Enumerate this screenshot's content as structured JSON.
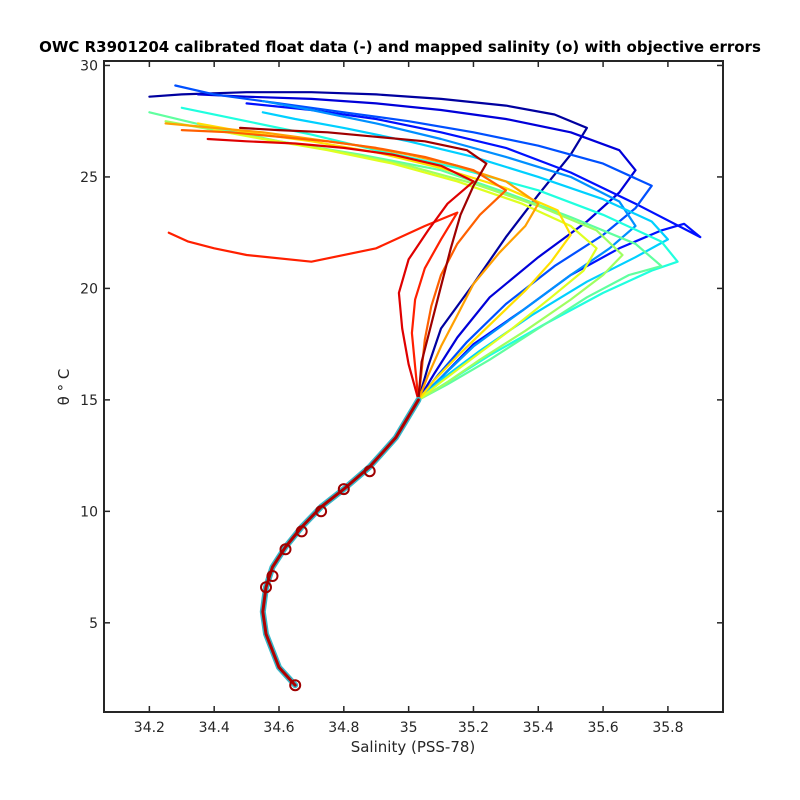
{
  "chart_data": {
    "type": "line",
    "title": "OWC R3901204 calibrated float data (-) and mapped salinity (o) with objective errors",
    "xlabel": "Salinity (PSS-78)",
    "ylabel": "θ ° C",
    "xlim": [
      34.06,
      35.97
    ],
    "ylim": [
      1.0,
      30.2
    ],
    "xticks": [
      "34.2",
      "34.4",
      "34.6",
      "34.8",
      "35",
      "35.2",
      "35.4",
      "35.6",
      "35.8"
    ],
    "xtick_values": [
      34.2,
      34.4,
      34.6,
      34.8,
      35.0,
      35.2,
      35.4,
      35.6,
      35.8
    ],
    "yticks": [
      "5",
      "10",
      "15",
      "20",
      "25",
      "30"
    ],
    "ytick_values": [
      5,
      10,
      15,
      20,
      25,
      30
    ],
    "colormap": "jet",
    "grid": false,
    "legend": "none",
    "deep_ts_curve": {
      "salinity": [
        34.65,
        34.6,
        34.56,
        34.55,
        34.56,
        34.58,
        34.62,
        34.67,
        34.73,
        34.8,
        34.88,
        34.96,
        35.03
      ],
      "theta": [
        2.2,
        3.0,
        4.5,
        5.5,
        6.6,
        7.5,
        8.4,
        9.3,
        10.2,
        11.0,
        12.0,
        13.3,
        15.0
      ]
    },
    "mapped_salinity_points": {
      "salinity": [
        34.65,
        34.56,
        34.58,
        34.62,
        34.67,
        34.73,
        34.8,
        34.88
      ],
      "theta": [
        2.2,
        6.6,
        7.1,
        8.3,
        9.1,
        10.0,
        11.0,
        11.8
      ]
    },
    "upper_profile_spread": {
      "theta_at_mix_point": 15.0,
      "salinity_range_surface": [
        34.18,
        35.9
      ],
      "theta_range_surface": [
        15.0,
        29.1
      ]
    },
    "series": [
      {
        "color": "#00009f",
        "salinity": [
          35.03,
          35.06,
          35.1,
          35.2,
          35.3,
          35.4,
          35.5,
          35.55,
          35.45,
          35.3,
          35.1,
          34.9,
          34.7,
          34.5,
          34.3,
          34.2
        ],
        "theta": [
          15.0,
          16.5,
          18.2,
          20.2,
          22.3,
          24.2,
          26.0,
          27.2,
          27.8,
          28.2,
          28.5,
          28.7,
          28.8,
          28.8,
          28.7,
          28.6
        ]
      },
      {
        "color": "#0000d9",
        "salinity": [
          35.03,
          35.08,
          35.15,
          35.25,
          35.4,
          35.55,
          35.65,
          35.7,
          35.65,
          35.5,
          35.3,
          35.1,
          34.9,
          34.7,
          34.5,
          34.35
        ],
        "theta": [
          15.0,
          16.2,
          17.8,
          19.6,
          21.4,
          23.0,
          24.3,
          25.3,
          26.2,
          27.0,
          27.6,
          28.0,
          28.3,
          28.5,
          28.6,
          28.7
        ]
      },
      {
        "color": "#0010ff",
        "salinity": [
          35.03,
          35.1,
          35.2,
          35.35,
          35.5,
          35.65,
          35.78,
          35.85,
          35.9,
          35.7,
          35.5,
          35.3,
          35.1,
          34.9,
          34.7,
          34.5
        ],
        "theta": [
          15.0,
          16.0,
          17.5,
          19.0,
          20.6,
          21.8,
          22.6,
          22.9,
          22.3,
          23.8,
          25.2,
          26.3,
          27.0,
          27.6,
          28.0,
          28.3
        ]
      },
      {
        "color": "#0050ff",
        "salinity": [
          35.03,
          35.09,
          35.18,
          35.3,
          35.45,
          35.6,
          35.7,
          35.75,
          35.6,
          35.4,
          35.2,
          35.0,
          34.8,
          34.6,
          34.4,
          34.28
        ],
        "theta": [
          15.0,
          16.1,
          17.6,
          19.3,
          21.0,
          22.4,
          23.6,
          24.6,
          25.6,
          26.4,
          27.0,
          27.5,
          27.9,
          28.3,
          28.7,
          29.1
        ]
      },
      {
        "color": "#0090ff",
        "salinity": [
          35.03,
          35.1,
          35.2,
          35.35,
          35.5,
          35.62,
          35.7,
          35.65,
          35.5,
          35.3,
          35.1,
          34.9,
          34.7,
          34.55
        ],
        "theta": [
          15.0,
          16.0,
          17.4,
          19.0,
          20.6,
          21.8,
          22.8,
          23.9,
          25.0,
          25.9,
          26.7,
          27.4,
          28.0,
          28.4
        ]
      },
      {
        "color": "#00d0ff",
        "salinity": [
          35.03,
          35.1,
          35.22,
          35.38,
          35.55,
          35.7,
          35.8,
          35.75,
          35.6,
          35.4,
          35.2,
          35.0,
          34.8,
          34.65,
          34.55
        ],
        "theta": [
          15.0,
          15.9,
          17.2,
          18.8,
          20.3,
          21.4,
          22.2,
          23.0,
          24.0,
          25.0,
          25.9,
          26.6,
          27.2,
          27.6,
          27.9
        ]
      },
      {
        "color": "#20ffdf",
        "salinity": [
          35.03,
          35.12,
          35.25,
          35.42,
          35.6,
          35.75,
          35.83,
          35.78,
          35.6,
          35.4,
          35.15,
          34.9,
          34.7,
          34.5,
          34.3
        ],
        "theta": [
          15.0,
          15.8,
          17.0,
          18.4,
          19.8,
          20.8,
          21.2,
          22.1,
          23.3,
          24.4,
          25.4,
          26.2,
          26.9,
          27.5,
          28.1
        ]
      },
      {
        "color": "#60ff9f",
        "salinity": [
          35.03,
          35.12,
          35.25,
          35.4,
          35.55,
          35.68,
          35.78,
          35.7,
          35.5,
          35.3,
          35.1,
          34.85,
          34.6,
          34.4,
          34.2
        ],
        "theta": [
          15.0,
          15.7,
          16.8,
          18.2,
          19.6,
          20.6,
          21.0,
          22.0,
          23.2,
          24.3,
          25.3,
          26.0,
          26.6,
          27.2,
          27.9
        ]
      },
      {
        "color": "#9fff60",
        "salinity": [
          35.03,
          35.11,
          35.22,
          35.36,
          35.5,
          35.6,
          35.66,
          35.58,
          35.4,
          35.2,
          35.0,
          34.8,
          34.6,
          34.4,
          34.25
        ],
        "theta": [
          15.0,
          15.7,
          16.8,
          18.1,
          19.5,
          20.6,
          21.5,
          22.6,
          23.7,
          24.7,
          25.5,
          26.1,
          26.6,
          27.1,
          27.5
        ]
      },
      {
        "color": "#dfff20",
        "salinity": [
          35.03,
          35.1,
          35.2,
          35.32,
          35.44,
          35.54,
          35.58,
          35.5,
          35.35,
          35.15,
          34.95,
          34.75,
          34.55,
          34.4
        ],
        "theta": [
          15.0,
          15.8,
          16.9,
          18.2,
          19.6,
          20.8,
          21.8,
          22.8,
          23.8,
          24.8,
          25.6,
          26.2,
          26.7,
          27.1
        ]
      },
      {
        "color": "#ffe000",
        "salinity": [
          35.03,
          35.08,
          35.16,
          35.26,
          35.36,
          35.44,
          35.5,
          35.46,
          35.3,
          35.1,
          34.9,
          34.7,
          34.5,
          34.35
        ],
        "theta": [
          15.0,
          15.9,
          17.1,
          18.5,
          19.9,
          21.2,
          22.4,
          23.5,
          24.5,
          25.4,
          26.1,
          26.6,
          27.0,
          27.4
        ]
      },
      {
        "color": "#ffa000",
        "salinity": [
          35.03,
          35.06,
          35.1,
          35.15,
          35.2,
          35.28,
          35.36,
          35.4,
          35.3,
          35.15,
          35.0,
          34.85,
          34.7,
          34.55,
          34.4,
          34.25
        ],
        "theta": [
          15.0,
          16.1,
          17.4,
          18.8,
          20.2,
          21.6,
          22.8,
          23.8,
          24.8,
          25.5,
          26.0,
          26.4,
          26.7,
          27.0,
          27.2,
          27.4
        ]
      },
      {
        "color": "#ff6000",
        "salinity": [
          35.03,
          35.04,
          35.05,
          35.07,
          35.1,
          35.15,
          35.22,
          35.3,
          35.2,
          35.05,
          34.9,
          34.75,
          34.6,
          34.45,
          34.3
        ],
        "theta": [
          15.0,
          16.3,
          17.7,
          19.2,
          20.6,
          22.0,
          23.3,
          24.4,
          25.3,
          25.9,
          26.3,
          26.6,
          26.8,
          27.0,
          27.1
        ]
      },
      {
        "color": "#ff2000",
        "salinity": [
          35.03,
          35.02,
          35.01,
          35.02,
          35.05,
          35.1,
          35.15,
          35.05,
          34.9,
          34.7,
          34.5,
          34.4,
          34.32,
          34.26
        ],
        "theta": [
          15.0,
          16.5,
          18.0,
          19.5,
          20.9,
          22.2,
          23.4,
          22.8,
          21.8,
          21.2,
          21.5,
          21.8,
          22.1,
          22.5
        ]
      },
      {
        "color": "#df0000",
        "salinity": [
          35.03,
          35.0,
          34.98,
          34.97,
          35.0,
          35.06,
          35.12,
          35.2,
          35.1,
          34.95,
          34.8,
          34.65,
          34.5,
          34.38
        ],
        "theta": [
          15.0,
          16.6,
          18.2,
          19.8,
          21.3,
          22.6,
          23.8,
          24.8,
          25.5,
          26.0,
          26.3,
          26.5,
          26.6,
          26.7
        ]
      },
      {
        "color": "#9f0000",
        "salinity": [
          35.03,
          35.04,
          35.07,
          35.1,
          35.13,
          35.16,
          35.2,
          35.24,
          35.18,
          35.05,
          34.9,
          34.75,
          34.6,
          34.48
        ],
        "theta": [
          15.0,
          16.7,
          18.4,
          20.1,
          21.8,
          23.3,
          24.6,
          25.6,
          26.2,
          26.6,
          26.8,
          27.0,
          27.1,
          27.2
        ]
      }
    ]
  }
}
